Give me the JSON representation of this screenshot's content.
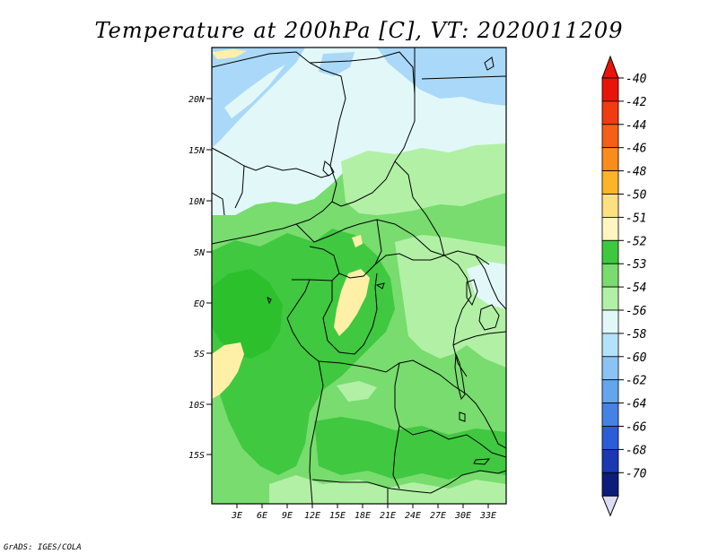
{
  "title": "Temperature at 200hPa [C], VT: 2020011209",
  "credit": "GrADS: IGES/COLA",
  "map": {
    "lon_labels": [
      "3E",
      "6E",
      "9E",
      "12E",
      "15E",
      "18E",
      "21E",
      "24E",
      "27E",
      "30E",
      "33E"
    ],
    "lat_labels": [
      "20N",
      "15N",
      "10N",
      "5N",
      "EQ",
      "5S",
      "10S",
      "15S"
    ]
  },
  "legend": {
    "labels": [
      "-40",
      "-42",
      "-44",
      "-46",
      "-48",
      "-50",
      "-51",
      "-52",
      "-53",
      "-54",
      "-56",
      "-58",
      "-60",
      "-62",
      "-64",
      "-66",
      "-68",
      "-70"
    ],
    "colors": [
      "#e8140a",
      "#f03c10",
      "#f56016",
      "#fa8c1c",
      "#fcb428",
      "#fde080",
      "#fff5c0",
      "#3ec83e",
      "#7adc6e",
      "#b2f0a6",
      "#e2f8f8",
      "#b4e2fa",
      "#8ac4f4",
      "#64a6ee",
      "#4682e6",
      "#2c5cd8",
      "#1a38b4",
      "#0c1c7a"
    ],
    "top_arrow_color": "#e8140a",
    "bottom_arrow_color": "#dcdcf4"
  },
  "colors": {
    "very_dark_green": "#2cc02c",
    "dark_green": "#40c840",
    "mid_green": "#78dc6e",
    "light_green": "#b2f0a6",
    "pale_cyan": "#e2f8f8",
    "light_blue": "#aad8f8",
    "pale_yellow": "#fff0a8"
  }
}
